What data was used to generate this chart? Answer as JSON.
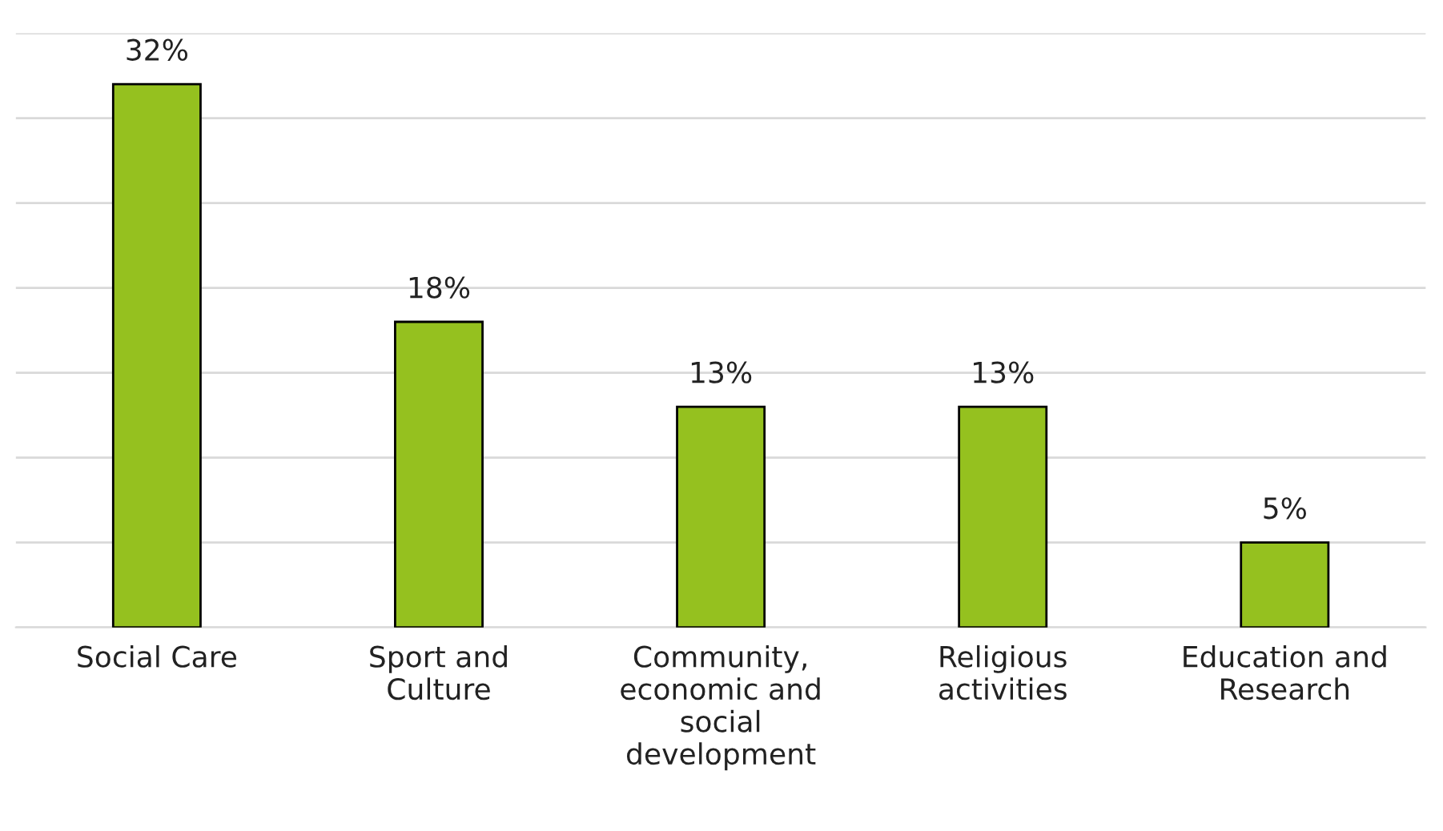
{
  "chart_data": {
    "type": "bar",
    "categories": [
      "Social Care",
      "Sport and\nCulture",
      "Community,\neconomic and\nsocial\ndevelopment",
      "Religious\nactivities",
      "Education and\nResearch"
    ],
    "values": [
      32,
      18,
      13,
      13,
      5
    ],
    "value_labels": [
      "32%",
      "18%",
      "13%",
      "13%",
      "5%"
    ],
    "color": "#95c11f",
    "ylim": [
      0,
      35
    ],
    "yticks": [
      {
        "value": 0,
        "label": null
      },
      {
        "value": 5,
        "label": null
      },
      {
        "value": 10,
        "label": null
      },
      {
        "value": 15,
        "label": null
      },
      {
        "value": 20,
        "label": null
      },
      {
        "value": 25,
        "label": null
      },
      {
        "value": 30,
        "label": null
      },
      {
        "value": 35,
        "label": null
      }
    ],
    "grid": "y",
    "tick_labels": "x"
  }
}
